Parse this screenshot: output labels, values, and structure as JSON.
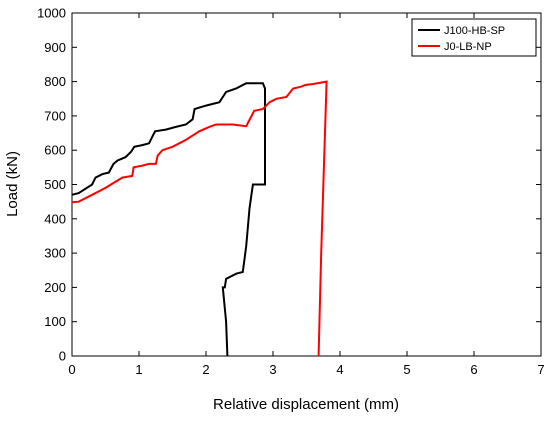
{
  "chart_data": {
    "type": "line",
    "title": "",
    "xlabel": "Relative displacement (mm)",
    "ylabel": "Load (kN)",
    "xlim": [
      0,
      7
    ],
    "ylim": [
      0,
      1000
    ],
    "xticks": [
      0,
      1,
      2,
      3,
      4,
      5,
      6,
      7
    ],
    "yticks": [
      0,
      100,
      200,
      300,
      400,
      500,
      600,
      700,
      800,
      900,
      1000
    ],
    "grid": false,
    "legend_position": "top-right",
    "series": [
      {
        "name": "J100-HB-SP",
        "color": "#000000",
        "points": [
          [
            0,
            470
          ],
          [
            0.1,
            475
          ],
          [
            0.3,
            500
          ],
          [
            0.35,
            520
          ],
          [
            0.45,
            530
          ],
          [
            0.55,
            535
          ],
          [
            0.62,
            560
          ],
          [
            0.68,
            570
          ],
          [
            0.8,
            580
          ],
          [
            0.88,
            595
          ],
          [
            0.93,
            610
          ],
          [
            1.05,
            615
          ],
          [
            1.15,
            620
          ],
          [
            1.2,
            640
          ],
          [
            1.24,
            655
          ],
          [
            1.4,
            660
          ],
          [
            1.55,
            668
          ],
          [
            1.7,
            675
          ],
          [
            1.8,
            690
          ],
          [
            1.83,
            720
          ],
          [
            2.0,
            730
          ],
          [
            2.2,
            740
          ],
          [
            2.3,
            770
          ],
          [
            2.45,
            780
          ],
          [
            2.55,
            790
          ],
          [
            2.6,
            795
          ],
          [
            2.85,
            795
          ],
          [
            2.88,
            780
          ],
          [
            2.88,
            500
          ],
          [
            2.7,
            500
          ],
          [
            2.65,
            430
          ],
          [
            2.6,
            320
          ],
          [
            2.55,
            245
          ],
          [
            2.45,
            240
          ],
          [
            2.35,
            230
          ],
          [
            2.3,
            225
          ],
          [
            2.28,
            200
          ],
          [
            2.25,
            200
          ],
          [
            2.3,
            100
          ],
          [
            2.32,
            0
          ]
        ]
      },
      {
        "name": "J0-LB-NP",
        "color": "#ff0000",
        "points": [
          [
            0,
            448
          ],
          [
            0.1,
            450
          ],
          [
            0.3,
            470
          ],
          [
            0.5,
            490
          ],
          [
            0.75,
            520
          ],
          [
            0.9,
            525
          ],
          [
            0.92,
            550
          ],
          [
            1.05,
            555
          ],
          [
            1.15,
            560
          ],
          [
            1.25,
            560
          ],
          [
            1.28,
            585
          ],
          [
            1.35,
            600
          ],
          [
            1.5,
            610
          ],
          [
            1.7,
            630
          ],
          [
            1.9,
            655
          ],
          [
            2.05,
            668
          ],
          [
            2.15,
            675
          ],
          [
            2.4,
            675
          ],
          [
            2.6,
            670
          ],
          [
            2.68,
            700
          ],
          [
            2.72,
            715
          ],
          [
            2.85,
            720
          ],
          [
            2.95,
            740
          ],
          [
            3.05,
            750
          ],
          [
            3.2,
            755
          ],
          [
            3.3,
            780
          ],
          [
            3.42,
            785
          ],
          [
            3.48,
            790
          ],
          [
            3.6,
            793
          ],
          [
            3.8,
            800
          ],
          [
            3.72,
            300
          ],
          [
            3.68,
            0
          ]
        ]
      }
    ]
  }
}
